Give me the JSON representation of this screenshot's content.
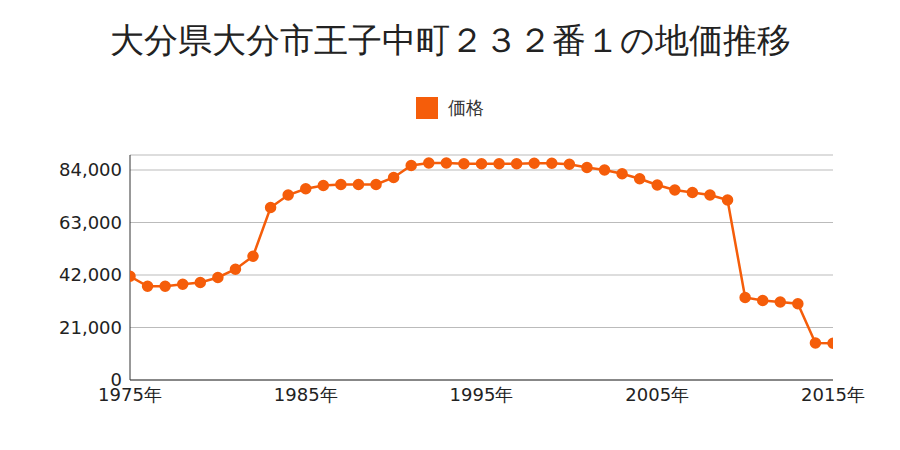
{
  "chart_data": {
    "type": "line",
    "title": "大分県大分市王子中町２３２番１の地価推移",
    "x": [
      1975,
      1976,
      1977,
      1978,
      1979,
      1980,
      1981,
      1982,
      1983,
      1984,
      1985,
      1986,
      1987,
      1988,
      1989,
      1990,
      1991,
      1992,
      1993,
      1994,
      1995,
      1996,
      1997,
      1998,
      1999,
      2000,
      2001,
      2002,
      2003,
      2004,
      2005,
      2006,
      2007,
      2008,
      2009,
      2010,
      2011,
      2012,
      2013,
      2014,
      2015
    ],
    "series": [
      {
        "name": "価格",
        "color": "#f55d0a",
        "marker": "circle",
        "values": [
          41500,
          37500,
          37500,
          38300,
          39000,
          41000,
          44300,
          49500,
          69000,
          74000,
          76500,
          77800,
          78200,
          78200,
          78200,
          81000,
          85800,
          86800,
          86800,
          86500,
          86500,
          86500,
          86500,
          86700,
          86700,
          86300,
          85000,
          84000,
          82500,
          80500,
          78000,
          76000,
          75000,
          74000,
          72000,
          33000,
          31800,
          31200,
          30500,
          14800,
          14700
        ]
      }
    ],
    "xlim": [
      1975,
      2015
    ],
    "xticks": [
      {
        "value": 1975,
        "label": "1975年"
      },
      {
        "value": 1985,
        "label": "1985年"
      },
      {
        "value": 1995,
        "label": "1995年"
      },
      {
        "value": 2005,
        "label": "2005年"
      },
      {
        "value": 2015,
        "label": "2015年"
      }
    ],
    "ylim": [
      0,
      90000
    ],
    "yticks": [
      {
        "value": 0,
        "label": "0"
      },
      {
        "value": 21000,
        "label": "21,000"
      },
      {
        "value": 42000,
        "label": "42,000"
      },
      {
        "value": 63000,
        "label": "63,000"
      },
      {
        "value": 84000,
        "label": "84,000"
      }
    ],
    "grid": true,
    "legend": "top"
  }
}
